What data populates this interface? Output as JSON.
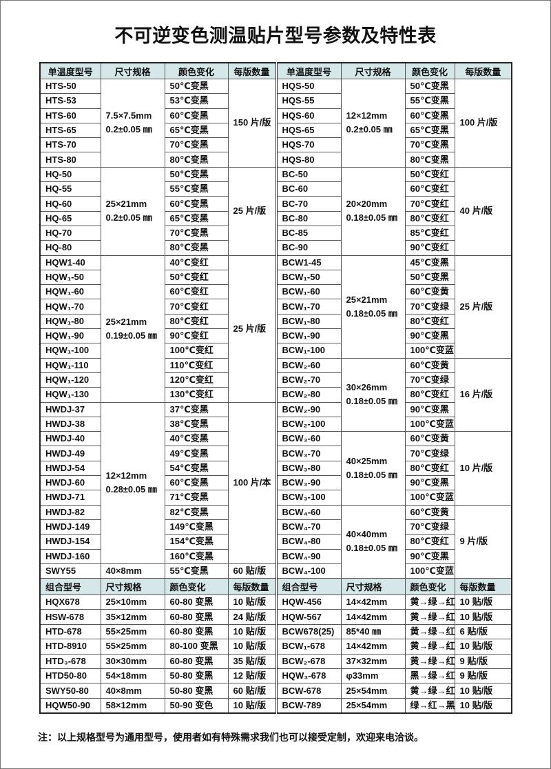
{
  "title": "不可逆变色测温贴片型号参数及特性表",
  "headers": [
    "单温度型号",
    "尺寸规格",
    "颜色变化",
    "每版数量"
  ],
  "left_groups": [
    {
      "size": [
        "7.5×7.5mm",
        "0.2±0.05 ㎜"
      ],
      "qty": "150 片/版",
      "items": [
        [
          "HTS-50",
          "50℃变黑"
        ],
        [
          "HTS-53",
          "53℃变黑"
        ],
        [
          "HTS-60",
          "60℃变黑"
        ],
        [
          "HTS-65",
          "65℃变黑"
        ],
        [
          "HTS-70",
          "70℃变黑"
        ],
        [
          "HTS-80",
          "80℃变黑"
        ]
      ]
    },
    {
      "size": [
        "25×21mm",
        "0.2±0.05 ㎜"
      ],
      "qty": "25 片/版",
      "items": [
        [
          "HQ-50",
          "50℃变黑"
        ],
        [
          "HQ-55",
          "55℃变黑"
        ],
        [
          "HQ-60",
          "60℃变黑"
        ],
        [
          "HQ-65",
          "65℃变黑"
        ],
        [
          "HQ-70",
          "70℃变黑"
        ],
        [
          "HQ-80",
          "80℃变黑"
        ]
      ]
    },
    {
      "size": [
        "25×21mm",
        "0.19±0.05 ㎜"
      ],
      "qty": "25 片/版",
      "items": [
        [
          "HQW1-40",
          "40℃变红"
        ],
        [
          "HQW₁-50",
          "50℃变红"
        ],
        [
          "HQW₁-60",
          "60℃变红"
        ],
        [
          "HQW₁-70",
          "70℃变红"
        ],
        [
          "HQW₁-80",
          "80℃变红"
        ],
        [
          "HQW₁-90",
          "90℃变红"
        ],
        [
          "HQW₁-100",
          "100℃变红"
        ],
        [
          "HQW₁-110",
          "110℃变红"
        ],
        [
          "HQW₁-120",
          "120℃变红"
        ],
        [
          "HQW₁-130",
          "130℃变红"
        ]
      ]
    },
    {
      "size": [
        "12×12mm",
        "0.28±0.05 ㎜"
      ],
      "qty": "100 片/本",
      "items": [
        [
          "HWDJ-37",
          "37℃变黑"
        ],
        [
          "HWDJ-38",
          "38℃变黑"
        ],
        [
          "HWDJ-40",
          "40℃变黑"
        ],
        [
          "HWDJ-49",
          "49℃变黑"
        ],
        [
          "HWDJ-54",
          "54℃变黑"
        ],
        [
          "HWDJ-60",
          "60℃变黑"
        ],
        [
          "HWDJ-71",
          "71℃变黑"
        ],
        [
          "HWDJ-82",
          "82℃变黑"
        ],
        [
          "HWDJ-149",
          "149℃变黑"
        ],
        [
          "HWDJ-154",
          "154℃变黑"
        ],
        [
          "HWDJ-160",
          "160℃变黑"
        ]
      ]
    },
    {
      "size": [
        "40×8mm"
      ],
      "qty": "60 贴/版",
      "items": [
        [
          "SWY55",
          "55℃变黑"
        ]
      ]
    }
  ],
  "right_groups": [
    {
      "size": [
        "12×12mm",
        "0.2±0.05 ㎜"
      ],
      "qty": "100 片/版",
      "items": [
        [
          "HQS-50",
          "50℃变黑"
        ],
        [
          "HQS-55",
          "55℃变黑"
        ],
        [
          "HQS-60",
          "60℃变黑"
        ],
        [
          "HQS-65",
          "65℃变黑"
        ],
        [
          "HQS-70",
          "70℃变黑"
        ],
        [
          "HQS-80",
          "80℃变黑"
        ]
      ]
    },
    {
      "size": [
        "20×20mm",
        "0.18±0.05 ㎜"
      ],
      "qty": "40 片/版",
      "items": [
        [
          "BC-50",
          "50℃变红"
        ],
        [
          "BC-60",
          "60℃变红"
        ],
        [
          "BC-70",
          "70℃变红"
        ],
        [
          "BC-80",
          "80℃变红"
        ],
        [
          "BC-85",
          "85℃变红"
        ],
        [
          "BC-90",
          "90℃变红"
        ]
      ]
    },
    {
      "size": [
        "25×21mm",
        "0.18±0.05 ㎜"
      ],
      "qty": "25 片/版",
      "items": [
        [
          "BCW1-45",
          "45℃变黑"
        ],
        [
          "BCW₁-50",
          "50℃变黑"
        ],
        [
          "BCW₁-60",
          "60℃变黄"
        ],
        [
          "BCW₁-70",
          "70℃变绿"
        ],
        [
          "BCW₁-80",
          "80℃变红"
        ],
        [
          "BCW₁-90",
          "90℃变黑"
        ],
        [
          "BCW₁-100",
          "100℃变蓝"
        ]
      ]
    },
    {
      "size": [
        "30×26mm",
        "0.18±0.05 ㎜"
      ],
      "qty": "16 片/版",
      "items": [
        [
          "BCW₂-60",
          "60℃变黄"
        ],
        [
          "BCW₂-70",
          "70℃变绿"
        ],
        [
          "BCW₂-80",
          "80℃变红"
        ],
        [
          "BCW₂-90",
          "90℃变黑"
        ],
        [
          "BCW₂-100",
          "100℃变蓝"
        ]
      ]
    },
    {
      "size": [
        "40×25mm",
        "0.18±0.05 ㎜"
      ],
      "qty": "10 片/版",
      "items": [
        [
          "BCW₃-60",
          "60℃变黄"
        ],
        [
          "BCW₃-70",
          "70℃变绿"
        ],
        [
          "BCW₃-80",
          "80℃变红"
        ],
        [
          "BCW₃-90",
          "90℃变黑"
        ],
        [
          "BCW₃-100",
          "100℃变蓝"
        ]
      ]
    },
    {
      "size": [
        "40×40mm",
        "0.18±0.05 ㎜"
      ],
      "qty": "9 片/版",
      "items": [
        [
          "BCW₄-60",
          "60℃变黄"
        ],
        [
          "BCW₄-70",
          "70℃变绿"
        ],
        [
          "BCW₄-80",
          "80℃变红"
        ],
        [
          "BCW₄-90",
          "90℃变黑"
        ],
        [
          "BCW₄-100",
          "100℃变蓝"
        ]
      ]
    }
  ],
  "combo_headers": [
    "组合型号",
    "尺寸规格",
    "颜色变化",
    "每版数量"
  ],
  "combo_rows": [
    [
      [
        "HQX678",
        "25×10mm",
        "60-80 变黑",
        "10 贴/版"
      ],
      [
        "HQW-456",
        "14×42mm",
        "黄→绿→红",
        "10 贴/版"
      ]
    ],
    [
      [
        "HSW-678",
        "35×12mm",
        "60-80 变黑",
        "24 贴/版"
      ],
      [
        "HQW-567",
        "14×42mm",
        "黄→绿→红",
        "10 贴/版"
      ]
    ],
    [
      [
        "HTD-678",
        "55×25mm",
        "60-80 变黑",
        "10 贴/版"
      ],
      [
        "BCW678(25)",
        "85*40 ㎜",
        "黄→绿→红",
        "6 贴/版"
      ]
    ],
    [
      [
        "HTD-8910",
        "55×25mm",
        "80-100 变黑",
        "10 贴/版"
      ],
      [
        "BCW₁-678",
        "14×42mm",
        "黄→绿→红",
        "10 贴/版"
      ]
    ],
    [
      [
        "HTD₃-678",
        "30×30mm",
        "60-80 变黑",
        "35 贴/版"
      ],
      [
        "BCW₂-678",
        "37×32mm",
        "黄→绿→红",
        "9 贴/版"
      ]
    ],
    [
      [
        "HTD50-80",
        "54×18mm",
        "50-80 变黑",
        "12 贴/版"
      ],
      [
        "HQW₃-678",
        "φ33mm",
        "黑→绿→红",
        "9 贴/版"
      ]
    ],
    [
      [
        "SWY50-80",
        "40×8mm",
        "50-80 变黑",
        "60 贴/版"
      ],
      [
        "BCW-678",
        "25×54mm",
        "黄→绿→红",
        "10 贴/版"
      ]
    ],
    [
      [
        "HQW50-90",
        "58×12mm",
        "50-90 变色",
        "10 贴/版"
      ],
      [
        "BCW-789",
        "25×54mm",
        "绿→红→黑",
        "10 贴/版"
      ]
    ]
  ],
  "note": "注：以上规格型号为通用型号，使用者如有特殊需求我们也可以接受定制，欢迎来电洽谈。",
  "colors": {
    "header_bg": "#d5e7e9",
    "border": "#222222"
  }
}
